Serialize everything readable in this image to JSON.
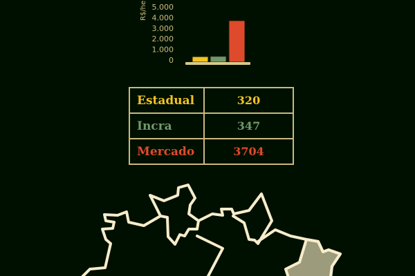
{
  "chart_data": {
    "type": "bar",
    "categories": [
      "Estadual",
      "Incra",
      "Mercado"
    ],
    "values": [
      320,
      347,
      3704
    ],
    "colors": [
      "#f2c425",
      "#6e9a6a",
      "#e04a2c"
    ],
    "ylabel": "R$/he",
    "ylim": [
      0,
      5000
    ],
    "yticks": [
      "0",
      "1.000",
      "2.000",
      "3.000",
      "4.000",
      "5.000"
    ],
    "ytick_values": [
      0,
      1000,
      2000,
      3000,
      4000,
      5000
    ],
    "grid": false
  },
  "table": {
    "rows": [
      {
        "label": "Estadual",
        "value": "320",
        "color": "#f2c425"
      },
      {
        "label": "Incra",
        "value": "347",
        "color": "#6e9a6a"
      },
      {
        "label": "Mercado",
        "value": "3704",
        "color": "#e04a2c"
      }
    ]
  },
  "colors": {
    "background": "#001000",
    "outline": "#f7eccb",
    "highlight_fill": "#9c9c7c",
    "axis": "#d8c98a"
  }
}
